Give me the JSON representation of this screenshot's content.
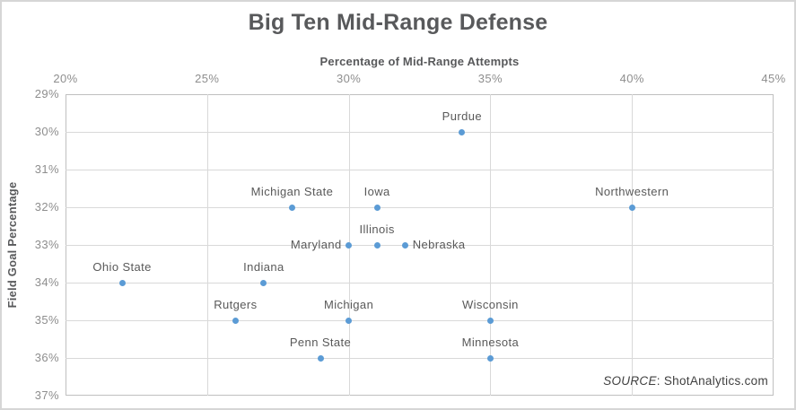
{
  "title": "Big Ten Mid-Range Defense",
  "source": {
    "prefix": "SOURCE",
    "suffix": ": ShotAnalytics.com"
  },
  "colors": {
    "accent_dot": "#5b9bd5",
    "gridline": "#d9d9d9",
    "plot_border": "#c0c0c0",
    "title_text": "#58595b",
    "tick_text": "#8e8e8e",
    "label_text": "#595959"
  },
  "chart_data": {
    "type": "scatter",
    "title": "Big Ten Mid-Range Defense",
    "xlabel": "Percentage of Mid-Range Attempts",
    "ylabel": "Field Goal Percentage",
    "xlim": [
      20,
      45
    ],
    "ylim": [
      29,
      37
    ],
    "x_axis_position": "top",
    "y_axis_inverted": true,
    "tick_format": "percent",
    "x_ticks": [
      20,
      25,
      30,
      35,
      40,
      45
    ],
    "y_ticks": [
      29,
      30,
      31,
      32,
      33,
      34,
      35,
      36,
      37
    ],
    "grid": true,
    "legend": "none",
    "points": [
      {
        "team": "Ohio State",
        "x": 22,
        "y": 34,
        "label_position": "top"
      },
      {
        "team": "Indiana",
        "x": 27,
        "y": 34,
        "label_position": "top"
      },
      {
        "team": "Rutgers",
        "x": 26,
        "y": 35,
        "label_position": "top"
      },
      {
        "team": "Michigan",
        "x": 30,
        "y": 35,
        "label_position": "top"
      },
      {
        "team": "Penn State",
        "x": 29,
        "y": 36,
        "label_position": "top"
      },
      {
        "team": "Purdue",
        "x": 34,
        "y": 30,
        "label_position": "top"
      },
      {
        "team": "Michigan State",
        "x": 28,
        "y": 32,
        "label_position": "top"
      },
      {
        "team": "Iowa",
        "x": 31,
        "y": 32,
        "label_position": "top"
      },
      {
        "team": "Maryland",
        "x": 30,
        "y": 33,
        "label_position": "left"
      },
      {
        "team": "Illinois",
        "x": 31,
        "y": 33,
        "label_position": "top"
      },
      {
        "team": "Nebraska",
        "x": 32,
        "y": 33,
        "label_position": "right"
      },
      {
        "team": "Northwestern",
        "x": 40,
        "y": 32,
        "label_position": "top"
      },
      {
        "team": "Wisconsin",
        "x": 35,
        "y": 35,
        "label_position": "top"
      },
      {
        "team": "Minnesota",
        "x": 35,
        "y": 36,
        "label_position": "top"
      }
    ]
  }
}
